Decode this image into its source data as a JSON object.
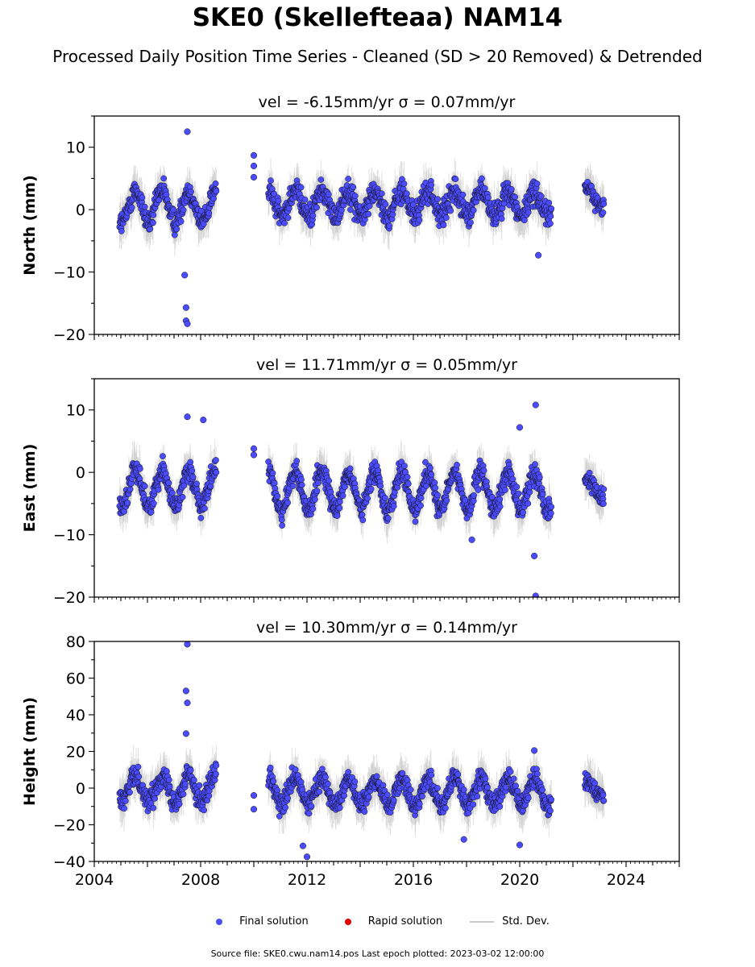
{
  "header": {
    "title": "SKE0 (Skellefteaa) NAM14",
    "subtitle": "Processed Daily Position Time Series - Cleaned (SD > 20 Removed) & Detrended"
  },
  "legend": {
    "final_label": "Final solution",
    "rapid_label": "Rapid solution",
    "std_label": "Std. Dev.",
    "final_color": "#4b4bff",
    "rapid_color": "#dd0000",
    "std_color": "#c8c8c8"
  },
  "footer": {
    "source": "Source file: SKE0.cwu.nam14.pos  Last epoch plotted: 2023-03-02 12:00:00"
  },
  "chart_data": [
    {
      "type": "scatter",
      "title": "vel = -6.15mm/yr   σ = 0.07mm/yr",
      "ylabel": "North (mm)",
      "xlim": [
        2004,
        2026
      ],
      "ylim": [
        -20,
        15
      ],
      "yticks": [
        -20,
        -10,
        0,
        10
      ],
      "xticks": [
        2004,
        2008,
        2012,
        2016,
        2020,
        2024
      ],
      "x_tick_labels_visible": false,
      "segments": [
        {
          "x_start": 2004.95,
          "x_end": 2008.6,
          "amp": 2.5,
          "offset": 0.5,
          "noise": 2.4
        },
        {
          "x_start": 2010.55,
          "x_end": 2021.2,
          "amp": 2.0,
          "offset": 1.0,
          "noise": 2.4
        },
        {
          "x_start": 2022.45,
          "x_end": 2023.17,
          "amp": 1.5,
          "offset": 2.0,
          "noise": 1.7
        }
      ],
      "outliers": [
        {
          "x": 2007.4,
          "y": -10.5
        },
        {
          "x": 2007.45,
          "y": -15.7
        },
        {
          "x": 2007.45,
          "y": -17.8
        },
        {
          "x": 2007.5,
          "y": -18.3
        },
        {
          "x": 2007.5,
          "y": 12.5
        },
        {
          "x": 2010.0,
          "y": 8.7
        },
        {
          "x": 2010.0,
          "y": 7.0
        },
        {
          "x": 2010.0,
          "y": 5.2
        },
        {
          "x": 2020.7,
          "y": -7.3
        }
      ]
    },
    {
      "type": "scatter",
      "title": "vel = 11.71mm/yr   σ = 0.05mm/yr",
      "ylabel": "East (mm)",
      "xlim": [
        2004,
        2026
      ],
      "ylim": [
        -20,
        15
      ],
      "yticks": [
        -20,
        -10,
        0,
        10
      ],
      "xticks": [
        2004,
        2008,
        2012,
        2016,
        2020,
        2024
      ],
      "x_tick_labels_visible": false,
      "segments": [
        {
          "x_start": 2004.95,
          "x_end": 2008.6,
          "amp": 3.0,
          "offset": -2.5,
          "noise": 2.2
        },
        {
          "x_start": 2010.55,
          "x_end": 2021.2,
          "amp": 3.0,
          "offset": -3.0,
          "noise": 2.2
        },
        {
          "x_start": 2022.45,
          "x_end": 2023.17,
          "amp": 1.5,
          "offset": -2.5,
          "noise": 1.8
        }
      ],
      "outliers": [
        {
          "x": 2007.5,
          "y": 8.9
        },
        {
          "x": 2008.1,
          "y": 8.4
        },
        {
          "x": 2010.0,
          "y": 3.8
        },
        {
          "x": 2010.0,
          "y": 2.8
        },
        {
          "x": 2018.2,
          "y": -10.8
        },
        {
          "x": 2020.0,
          "y": 7.2
        },
        {
          "x": 2020.6,
          "y": 10.8
        },
        {
          "x": 2020.55,
          "y": -13.4
        },
        {
          "x": 2020.6,
          "y": -19.8
        }
      ]
    },
    {
      "type": "scatter",
      "title": "vel = 10.30mm/yr   σ = 0.14mm/yr",
      "ylabel": "Height (mm)",
      "xlim": [
        2004,
        2026
      ],
      "ylim": [
        -40,
        80
      ],
      "yticks": [
        -40,
        -20,
        0,
        20,
        40,
        60,
        80
      ],
      "xticks": [
        2004,
        2008,
        2012,
        2016,
        2020,
        2024
      ],
      "x_tick_labels_visible": true,
      "segments": [
        {
          "x_start": 2004.95,
          "x_end": 2008.6,
          "amp": 7.0,
          "offset": 0.0,
          "noise": 7.5
        },
        {
          "x_start": 2010.55,
          "x_end": 2021.2,
          "amp": 7.0,
          "offset": -2.0,
          "noise": 7.0
        },
        {
          "x_start": 2022.45,
          "x_end": 2023.17,
          "amp": 4.0,
          "offset": 0.0,
          "noise": 6.0
        }
      ],
      "outliers": [
        {
          "x": 2007.5,
          "y": 78.5
        },
        {
          "x": 2007.45,
          "y": 53.0
        },
        {
          "x": 2007.5,
          "y": 46.5
        },
        {
          "x": 2007.45,
          "y": 29.7
        },
        {
          "x": 2010.0,
          "y": -4.0
        },
        {
          "x": 2010.0,
          "y": -11.5
        },
        {
          "x": 2011.85,
          "y": -31.5
        },
        {
          "x": 2012.0,
          "y": -37.5
        },
        {
          "x": 2017.9,
          "y": -28.0
        },
        {
          "x": 2020.0,
          "y": -31.0
        },
        {
          "x": 2020.55,
          "y": 20.5
        }
      ]
    }
  ]
}
